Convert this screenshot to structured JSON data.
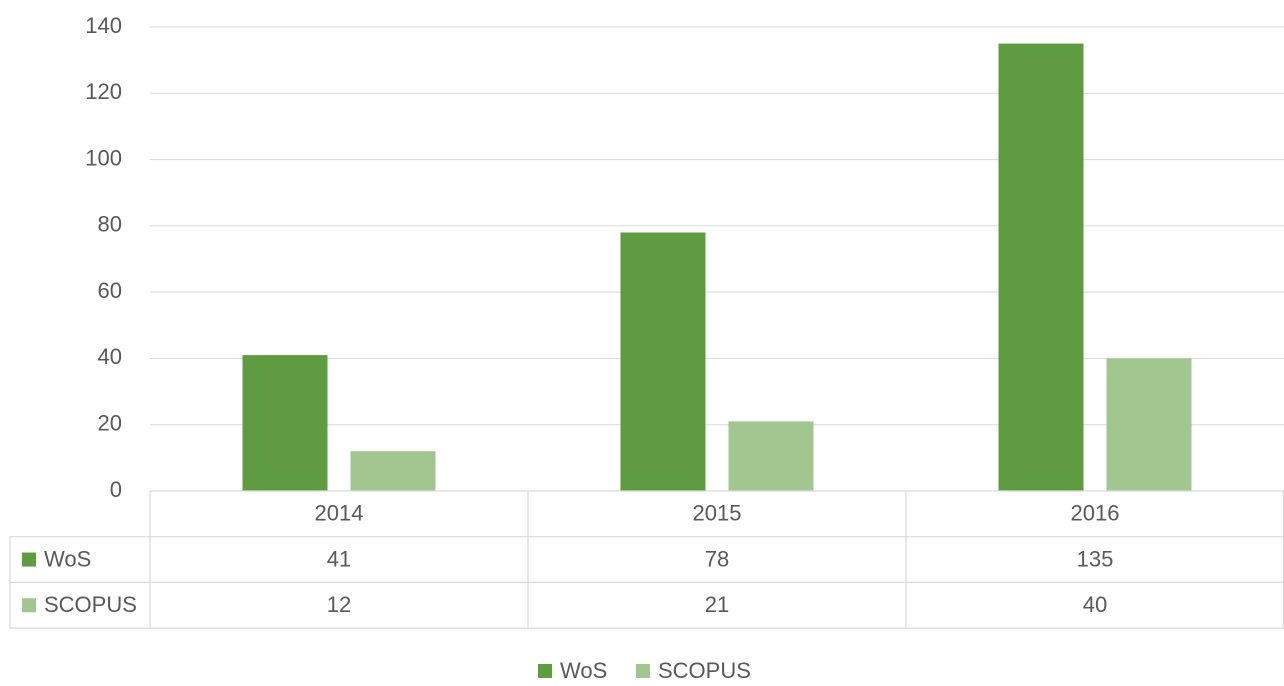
{
  "chart_data": {
    "type": "bar",
    "categories": [
      "2014",
      "2015",
      "2016"
    ],
    "series": [
      {
        "name": "WoS",
        "color": "#5f9b41",
        "values": [
          41,
          78,
          135
        ]
      },
      {
        "name": "SCOPUS",
        "color": "#a1c68f",
        "values": [
          12,
          21,
          40
        ]
      }
    ],
    "ylim": [
      0,
      140
    ],
    "yticks": [
      0,
      20,
      40,
      60,
      80,
      100,
      120,
      140
    ],
    "grid": true,
    "data_table": true,
    "legend": "bottom"
  }
}
